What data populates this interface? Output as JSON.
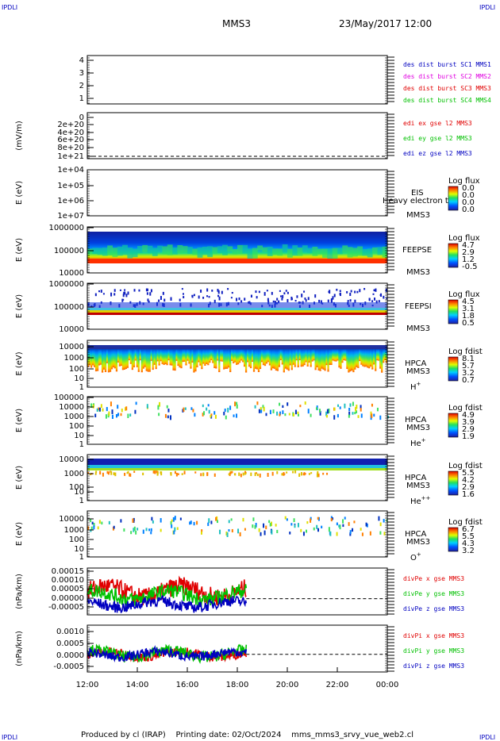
{
  "corner_labels": {
    "tl": "IPDLI",
    "tr": "IPDLI",
    "bl": "IPDLI",
    "br": "IPDLI"
  },
  "header": {
    "mission": "MMS3",
    "datetime": "23/May/2017 12:00"
  },
  "footer": "Produced by cl (IRAP)    Printing date: 02/Oct/2024    mms_mms3_srvy_vue_web2.cl",
  "x_axis": {
    "ticks": [
      "12:00",
      "14:00",
      "16:00",
      "18:00",
      "20:00",
      "22:00",
      "00:00"
    ]
  },
  "colors": {
    "red": "#e00000",
    "magenta": "#e000e0",
    "green": "#00c000",
    "blue": "#0000c0"
  },
  "chart_data": [
    {
      "type": "table",
      "id": "dist",
      "yticks": [
        "1",
        "2",
        "3",
        "4"
      ],
      "legend": [
        {
          "label": "des dist burst SC1 MMS1",
          "color": "#0000c0"
        },
        {
          "label": "des dist burst SC2 MMS2",
          "color": "#e000e0"
        },
        {
          "label": "des dist burst SC3 MMS3",
          "color": "#e00000"
        },
        {
          "label": "des dist burst SC4 MMS4",
          "color": "#00c000"
        }
      ]
    },
    {
      "type": "line",
      "id": "edi",
      "ylabel": "(mV/m)",
      "yticks": [
        "1e+21",
        "8e+20",
        "6e+20",
        "4e+20",
        "2e+20",
        "0"
      ],
      "legend": [
        {
          "label": "edi ex gse l2 MMS3",
          "color": "#e00000"
        },
        {
          "label": "edi ey gse l2 MMS3",
          "color": "#00c000"
        },
        {
          "label": "edi ez gse l2 MMS3",
          "color": "#0000c0"
        }
      ]
    },
    {
      "type": "heatmap",
      "id": "eis",
      "ylabel": "E (eV)",
      "yticks": [
        "1e+07",
        "1e+06",
        "1e+05",
        "1e+04"
      ],
      "name": "EIS",
      "sc": "MMS3",
      "overlay": "Heavy electron to",
      "cbar_title": "Log flux",
      "cbar_ticks": [
        "0.0",
        "0.0",
        "0.0",
        "0.0"
      ]
    },
    {
      "type": "heatmap",
      "id": "feepse",
      "ylabel": "E (eV)",
      "yticks": [
        "1000000",
        "100000",
        "10000"
      ],
      "name": "FEEPSE",
      "sc": "MMS3",
      "cbar_title": "Log flux",
      "cbar_ticks": [
        "4.7",
        "2.9",
        "1.2",
        "-0.5"
      ]
    },
    {
      "type": "heatmap",
      "id": "feepsi",
      "ylabel": "E (eV)",
      "yticks": [
        "1000000",
        "100000",
        "10000"
      ],
      "name": "FEEPSI",
      "sc": "MMS3",
      "cbar_title": "Log flux",
      "cbar_ticks": [
        "4.5",
        "3.1",
        "1.8",
        "0.5"
      ]
    },
    {
      "type": "heatmap",
      "id": "hpca_h",
      "ylabel": "E (eV)",
      "yticks": [
        "10000",
        "1000",
        "100",
        "10",
        "1"
      ],
      "name": "HPCA",
      "sc": "MMS3",
      "species": "H",
      "charge": "+",
      "cbar_title": "Log fdist",
      "cbar_ticks": [
        "8.1",
        "5.7",
        "3.2",
        "0.7"
      ]
    },
    {
      "type": "heatmap",
      "id": "hpca_he",
      "ylabel": "E (eV)",
      "yticks": [
        "100000",
        "10000",
        "1000",
        "100",
        "10",
        "1"
      ],
      "name": "HPCA",
      "sc": "MMS3",
      "species": "He",
      "charge": "+",
      "cbar_title": "Log fdist",
      "cbar_ticks": [
        "4.9",
        "3.9",
        "2.9",
        "1.9"
      ]
    },
    {
      "type": "heatmap",
      "id": "hpca_hepp",
      "ylabel": "E (eV)",
      "yticks": [
        "10000",
        "1000",
        "100",
        "10",
        "1"
      ],
      "name": "HPCA",
      "sc": "MMS3",
      "species": "He",
      "charge": "++",
      "cbar_title": "Log fdist",
      "cbar_ticks": [
        "5.5",
        "4.2",
        "2.9",
        "1.6"
      ]
    },
    {
      "type": "heatmap",
      "id": "hpca_o",
      "ylabel": "E (eV)",
      "yticks": [
        "10000",
        "1000",
        "100",
        "10",
        "1"
      ],
      "name": "HPCA",
      "sc": "MMS3",
      "species": "O",
      "charge": "+",
      "cbar_title": "Log fdist",
      "cbar_ticks": [
        "6.7",
        "5.5",
        "4.3",
        "3.2"
      ]
    },
    {
      "type": "line",
      "id": "divpe",
      "ylabel": "(nPa/km)",
      "yticks": [
        "0.00015",
        "0.00010",
        "0.00005",
        "0.00000",
        "-0.00005"
      ],
      "ylim": [
        -8e-05,
        0.00016
      ],
      "legend": [
        {
          "label": "divPe x gse MMS3",
          "color": "#e00000"
        },
        {
          "label": "divPe y gse MMS3",
          "color": "#00c000"
        },
        {
          "label": "divPe z gse MMS3",
          "color": "#0000c0"
        }
      ]
    },
    {
      "type": "line",
      "id": "divpi",
      "ylabel": "(nPa/km)",
      "yticks": [
        "0.0010",
        "0.0005",
        "0.0000",
        "-0.0005"
      ],
      "ylim": [
        -0.0007,
        0.0012
      ],
      "legend": [
        {
          "label": "divPi x gse MMS3",
          "color": "#e00000"
        },
        {
          "label": "divPi y gse MMS3",
          "color": "#00c000"
        },
        {
          "label": "divPi z gse MMS3",
          "color": "#0000c0"
        }
      ]
    }
  ]
}
